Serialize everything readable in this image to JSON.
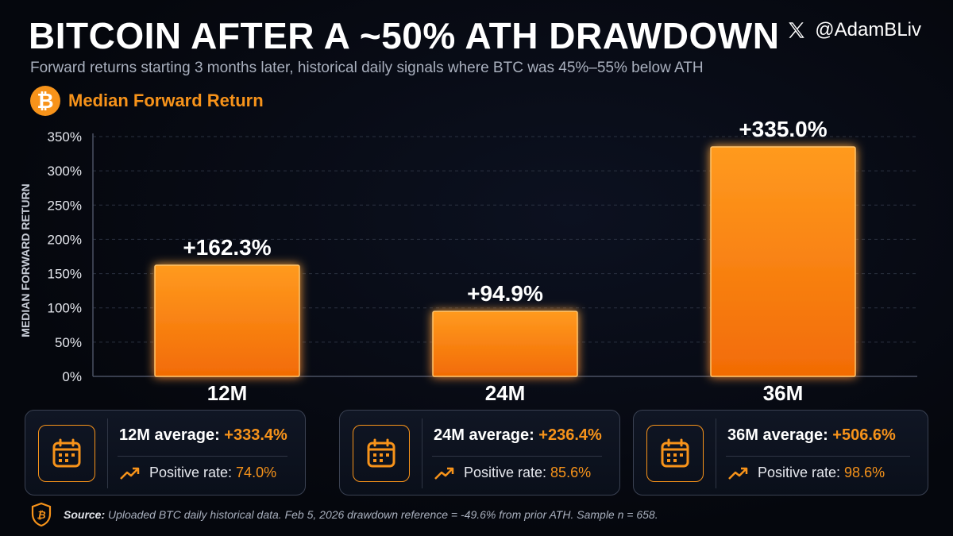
{
  "header": {
    "title": "BITCOIN AFTER A ~50% ATH DRAWDOWN",
    "subtitle": "Forward returns starting 3 months later, historical daily signals where BTC was 45%–55% below ATH",
    "handle": "@AdamBLiv",
    "handle_icon": "x-logo-icon"
  },
  "legend": {
    "icon": "bitcoin-icon",
    "icon_glyph": "₿",
    "label": "Median Forward Return"
  },
  "chart_data": {
    "type": "bar",
    "categories": [
      "12M",
      "24M",
      "36M"
    ],
    "values": [
      162.3,
      94.9,
      335.0
    ],
    "data_labels": [
      "+162.3%",
      "+94.9%",
      "+335.0%"
    ],
    "ylabel": "MEDIAN FORWARD RETURN",
    "ylim": [
      0,
      350
    ],
    "yticks": [
      "0%",
      "50%",
      "100%",
      "150%",
      "200%",
      "250%",
      "300%",
      "350%"
    ],
    "grid": true,
    "bar_color": "#f7931a",
    "grid_color": "#2a3140"
  },
  "cards": [
    {
      "avg_label": "12M average: ",
      "avg_value": "+333.4%",
      "pos_label": "Positive rate: ",
      "pos_value": "74.0%"
    },
    {
      "avg_label": "24M average: ",
      "avg_value": "+236.4%",
      "pos_label": "Positive rate: ",
      "pos_value": "85.6%"
    },
    {
      "avg_label": "36M average: ",
      "avg_value": "+506.6%",
      "pos_label": "Positive rate: ",
      "pos_value": "98.6%"
    }
  ],
  "footer": {
    "source_label": "Source:",
    "source_text": "Uploaded BTC daily historical data. Feb 5, 2026 drawdown reference = -49.6% from prior ATH. Sample n = 658.",
    "icon": "bitcoin-shield-icon"
  },
  "colors": {
    "accent": "#f7931a",
    "background": "#05070d",
    "muted": "#a9b0be"
  }
}
